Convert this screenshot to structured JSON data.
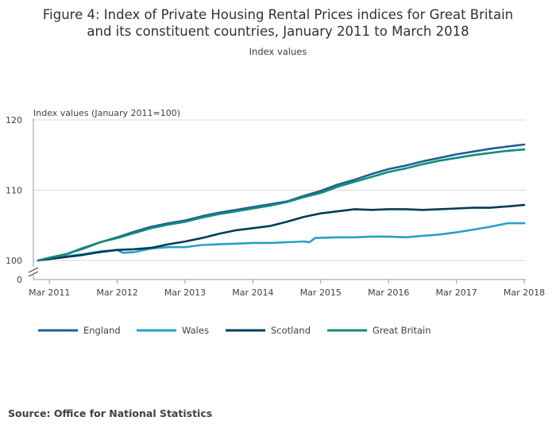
{
  "figure": {
    "title_line1": "Figure 4: Index of Private Housing Rental Prices indices for Great Britain",
    "title_line2": "and its constituent countries, January 2011 to March 2018",
    "subtitle": "Index values",
    "source": "Source: Office for National Statistics"
  },
  "chart_data": {
    "type": "line",
    "title": "Figure 4: Index of Private Housing Rental Prices indices for Great Britain and its constituent countries, January 2011 to March 2018",
    "subtitle": "Index values",
    "ylabel": "Index values (January 2011=100)",
    "xlabel": "",
    "ylim": [
      100,
      120
    ],
    "y_axis_break": true,
    "y_zero_label": "0",
    "yticks": [
      100,
      110,
      120
    ],
    "x_start": "2011-01",
    "x_end": "2018-03",
    "xtick_labels": [
      "Mar 2011",
      "Mar 2012",
      "Mar 2013",
      "Mar 2014",
      "Mar 2015",
      "Mar 2016",
      "Mar 2017",
      "Mar 2018"
    ],
    "xtick_positions": [
      "2011-03",
      "2012-03",
      "2013-03",
      "2014-03",
      "2015-03",
      "2016-03",
      "2017-03",
      "2018-03"
    ],
    "grid": "horizontal",
    "legend_position": "bottom",
    "series": [
      {
        "name": "England",
        "color": "#206095",
        "points": [
          [
            "2011-01",
            100.0
          ],
          [
            "2011-03",
            100.4
          ],
          [
            "2011-06",
            100.9
          ],
          [
            "2011-09",
            101.7
          ],
          [
            "2011-12",
            102.6
          ],
          [
            "2012-03",
            103.3
          ],
          [
            "2012-06",
            104.1
          ],
          [
            "2012-09",
            104.8
          ],
          [
            "2012-12",
            105.3
          ],
          [
            "2013-03",
            105.7
          ],
          [
            "2013-06",
            106.3
          ],
          [
            "2013-09",
            106.8
          ],
          [
            "2013-12",
            107.2
          ],
          [
            "2014-03",
            107.6
          ],
          [
            "2014-06",
            108.0
          ],
          [
            "2014-09",
            108.4
          ],
          [
            "2014-12",
            109.2
          ],
          [
            "2015-03",
            109.9
          ],
          [
            "2015-06",
            110.8
          ],
          [
            "2015-09",
            111.5
          ],
          [
            "2015-12",
            112.3
          ],
          [
            "2016-03",
            113.0
          ],
          [
            "2016-06",
            113.5
          ],
          [
            "2016-09",
            114.1
          ],
          [
            "2016-12",
            114.6
          ],
          [
            "2017-03",
            115.1
          ],
          [
            "2017-06",
            115.5
          ],
          [
            "2017-09",
            115.9
          ],
          [
            "2017-12",
            116.2
          ],
          [
            "2018-03",
            116.5
          ]
        ]
      },
      {
        "name": "Wales",
        "color": "#27a0cc",
        "points": [
          [
            "2011-01",
            100.0
          ],
          [
            "2011-03",
            100.3
          ],
          [
            "2011-06",
            100.6
          ],
          [
            "2011-09",
            100.9
          ],
          [
            "2011-12",
            101.3
          ],
          [
            "2012-03",
            101.5
          ],
          [
            "2012-04",
            101.1
          ],
          [
            "2012-06",
            101.2
          ],
          [
            "2012-09",
            101.7
          ],
          [
            "2012-12",
            101.9
          ],
          [
            "2013-03",
            101.9
          ],
          [
            "2013-06",
            102.2
          ],
          [
            "2013-09",
            102.3
          ],
          [
            "2013-12",
            102.4
          ],
          [
            "2014-03",
            102.5
          ],
          [
            "2014-06",
            102.5
          ],
          [
            "2014-09",
            102.6
          ],
          [
            "2014-12",
            102.7
          ],
          [
            "2015-01",
            102.6
          ],
          [
            "2015-02",
            103.2
          ],
          [
            "2015-06",
            103.3
          ],
          [
            "2015-09",
            103.3
          ],
          [
            "2015-12",
            103.4
          ],
          [
            "2016-03",
            103.4
          ],
          [
            "2016-06",
            103.3
          ],
          [
            "2016-09",
            103.5
          ],
          [
            "2016-12",
            103.7
          ],
          [
            "2017-03",
            104.0
          ],
          [
            "2017-06",
            104.4
          ],
          [
            "2017-09",
            104.8
          ],
          [
            "2017-12",
            105.3
          ],
          [
            "2018-03",
            105.3
          ]
        ]
      },
      {
        "name": "Scotland",
        "color": "#003c57",
        "points": [
          [
            "2011-01",
            100.0
          ],
          [
            "2011-03",
            100.2
          ],
          [
            "2011-06",
            100.5
          ],
          [
            "2011-09",
            100.8
          ],
          [
            "2011-12",
            101.2
          ],
          [
            "2012-03",
            101.5
          ],
          [
            "2012-06",
            101.6
          ],
          [
            "2012-09",
            101.8
          ],
          [
            "2012-12",
            102.3
          ],
          [
            "2013-03",
            102.7
          ],
          [
            "2013-06",
            103.2
          ],
          [
            "2013-09",
            103.8
          ],
          [
            "2013-12",
            104.3
          ],
          [
            "2014-03",
            104.6
          ],
          [
            "2014-06",
            104.9
          ],
          [
            "2014-09",
            105.5
          ],
          [
            "2014-12",
            106.2
          ],
          [
            "2015-03",
            106.7
          ],
          [
            "2015-06",
            107.0
          ],
          [
            "2015-09",
            107.3
          ],
          [
            "2015-12",
            107.2
          ],
          [
            "2016-03",
            107.3
          ],
          [
            "2016-06",
            107.3
          ],
          [
            "2016-09",
            107.2
          ],
          [
            "2016-12",
            107.3
          ],
          [
            "2017-03",
            107.4
          ],
          [
            "2017-06",
            107.5
          ],
          [
            "2017-09",
            107.5
          ],
          [
            "2017-12",
            107.7
          ],
          [
            "2018-03",
            107.9
          ]
        ]
      },
      {
        "name": "Great Britain",
        "color": "#118c7b",
        "points": [
          [
            "2011-01",
            100.0
          ],
          [
            "2011-03",
            100.4
          ],
          [
            "2011-06",
            100.9
          ],
          [
            "2011-09",
            101.8
          ],
          [
            "2011-12",
            102.6
          ],
          [
            "2012-03",
            103.2
          ],
          [
            "2012-06",
            103.9
          ],
          [
            "2012-09",
            104.6
          ],
          [
            "2012-12",
            105.1
          ],
          [
            "2013-03",
            105.5
          ],
          [
            "2013-06",
            106.1
          ],
          [
            "2013-09",
            106.6
          ],
          [
            "2013-12",
            107.0
          ],
          [
            "2014-03",
            107.4
          ],
          [
            "2014-06",
            107.8
          ],
          [
            "2014-09",
            108.3
          ],
          [
            "2014-12",
            109.0
          ],
          [
            "2015-03",
            109.6
          ],
          [
            "2015-06",
            110.5
          ],
          [
            "2015-09",
            111.2
          ],
          [
            "2015-12",
            111.9
          ],
          [
            "2016-03",
            112.6
          ],
          [
            "2016-06",
            113.1
          ],
          [
            "2016-09",
            113.7
          ],
          [
            "2016-12",
            114.2
          ],
          [
            "2017-03",
            114.6
          ],
          [
            "2017-06",
            115.0
          ],
          [
            "2017-09",
            115.3
          ],
          [
            "2017-12",
            115.6
          ],
          [
            "2018-03",
            115.8
          ]
        ]
      }
    ]
  }
}
